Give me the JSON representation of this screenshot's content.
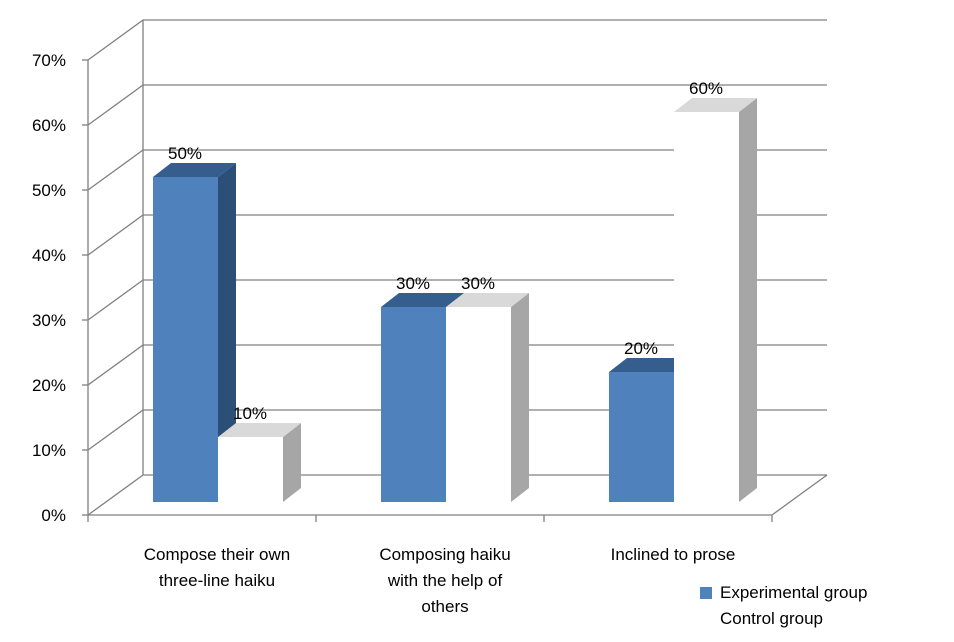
{
  "chart_data": {
    "type": "bar",
    "categories": [
      [
        "Compose their own",
        "three-line haiku"
      ],
      [
        "Composing haiku",
        "with the help of",
        "others"
      ],
      [
        "Inclined to prose"
      ]
    ],
    "series": [
      {
        "name": "Experimental group",
        "values": [
          50,
          30,
          20
        ],
        "color": "#4F81BD",
        "top_color": "#355E8F",
        "side_color": "#2C4F78"
      },
      {
        "name": "Control group",
        "values": [
          10,
          30,
          60
        ],
        "color": "#FFFFFF",
        "top_color": "#D9D9D9",
        "side_color": "#A6A6A6"
      }
    ],
    "data_labels": [
      [
        "50%",
        "30%",
        "20%"
      ],
      [
        "10%",
        "30%",
        "60%"
      ]
    ],
    "y_ticks": [
      "0%",
      "10%",
      "20%",
      "30%",
      "40%",
      "50%",
      "60%",
      "70%"
    ],
    "ylim": [
      0,
      70
    ],
    "grid": true,
    "legend_position": "bottom-right",
    "title": "",
    "xlabel": "",
    "ylabel": ""
  }
}
